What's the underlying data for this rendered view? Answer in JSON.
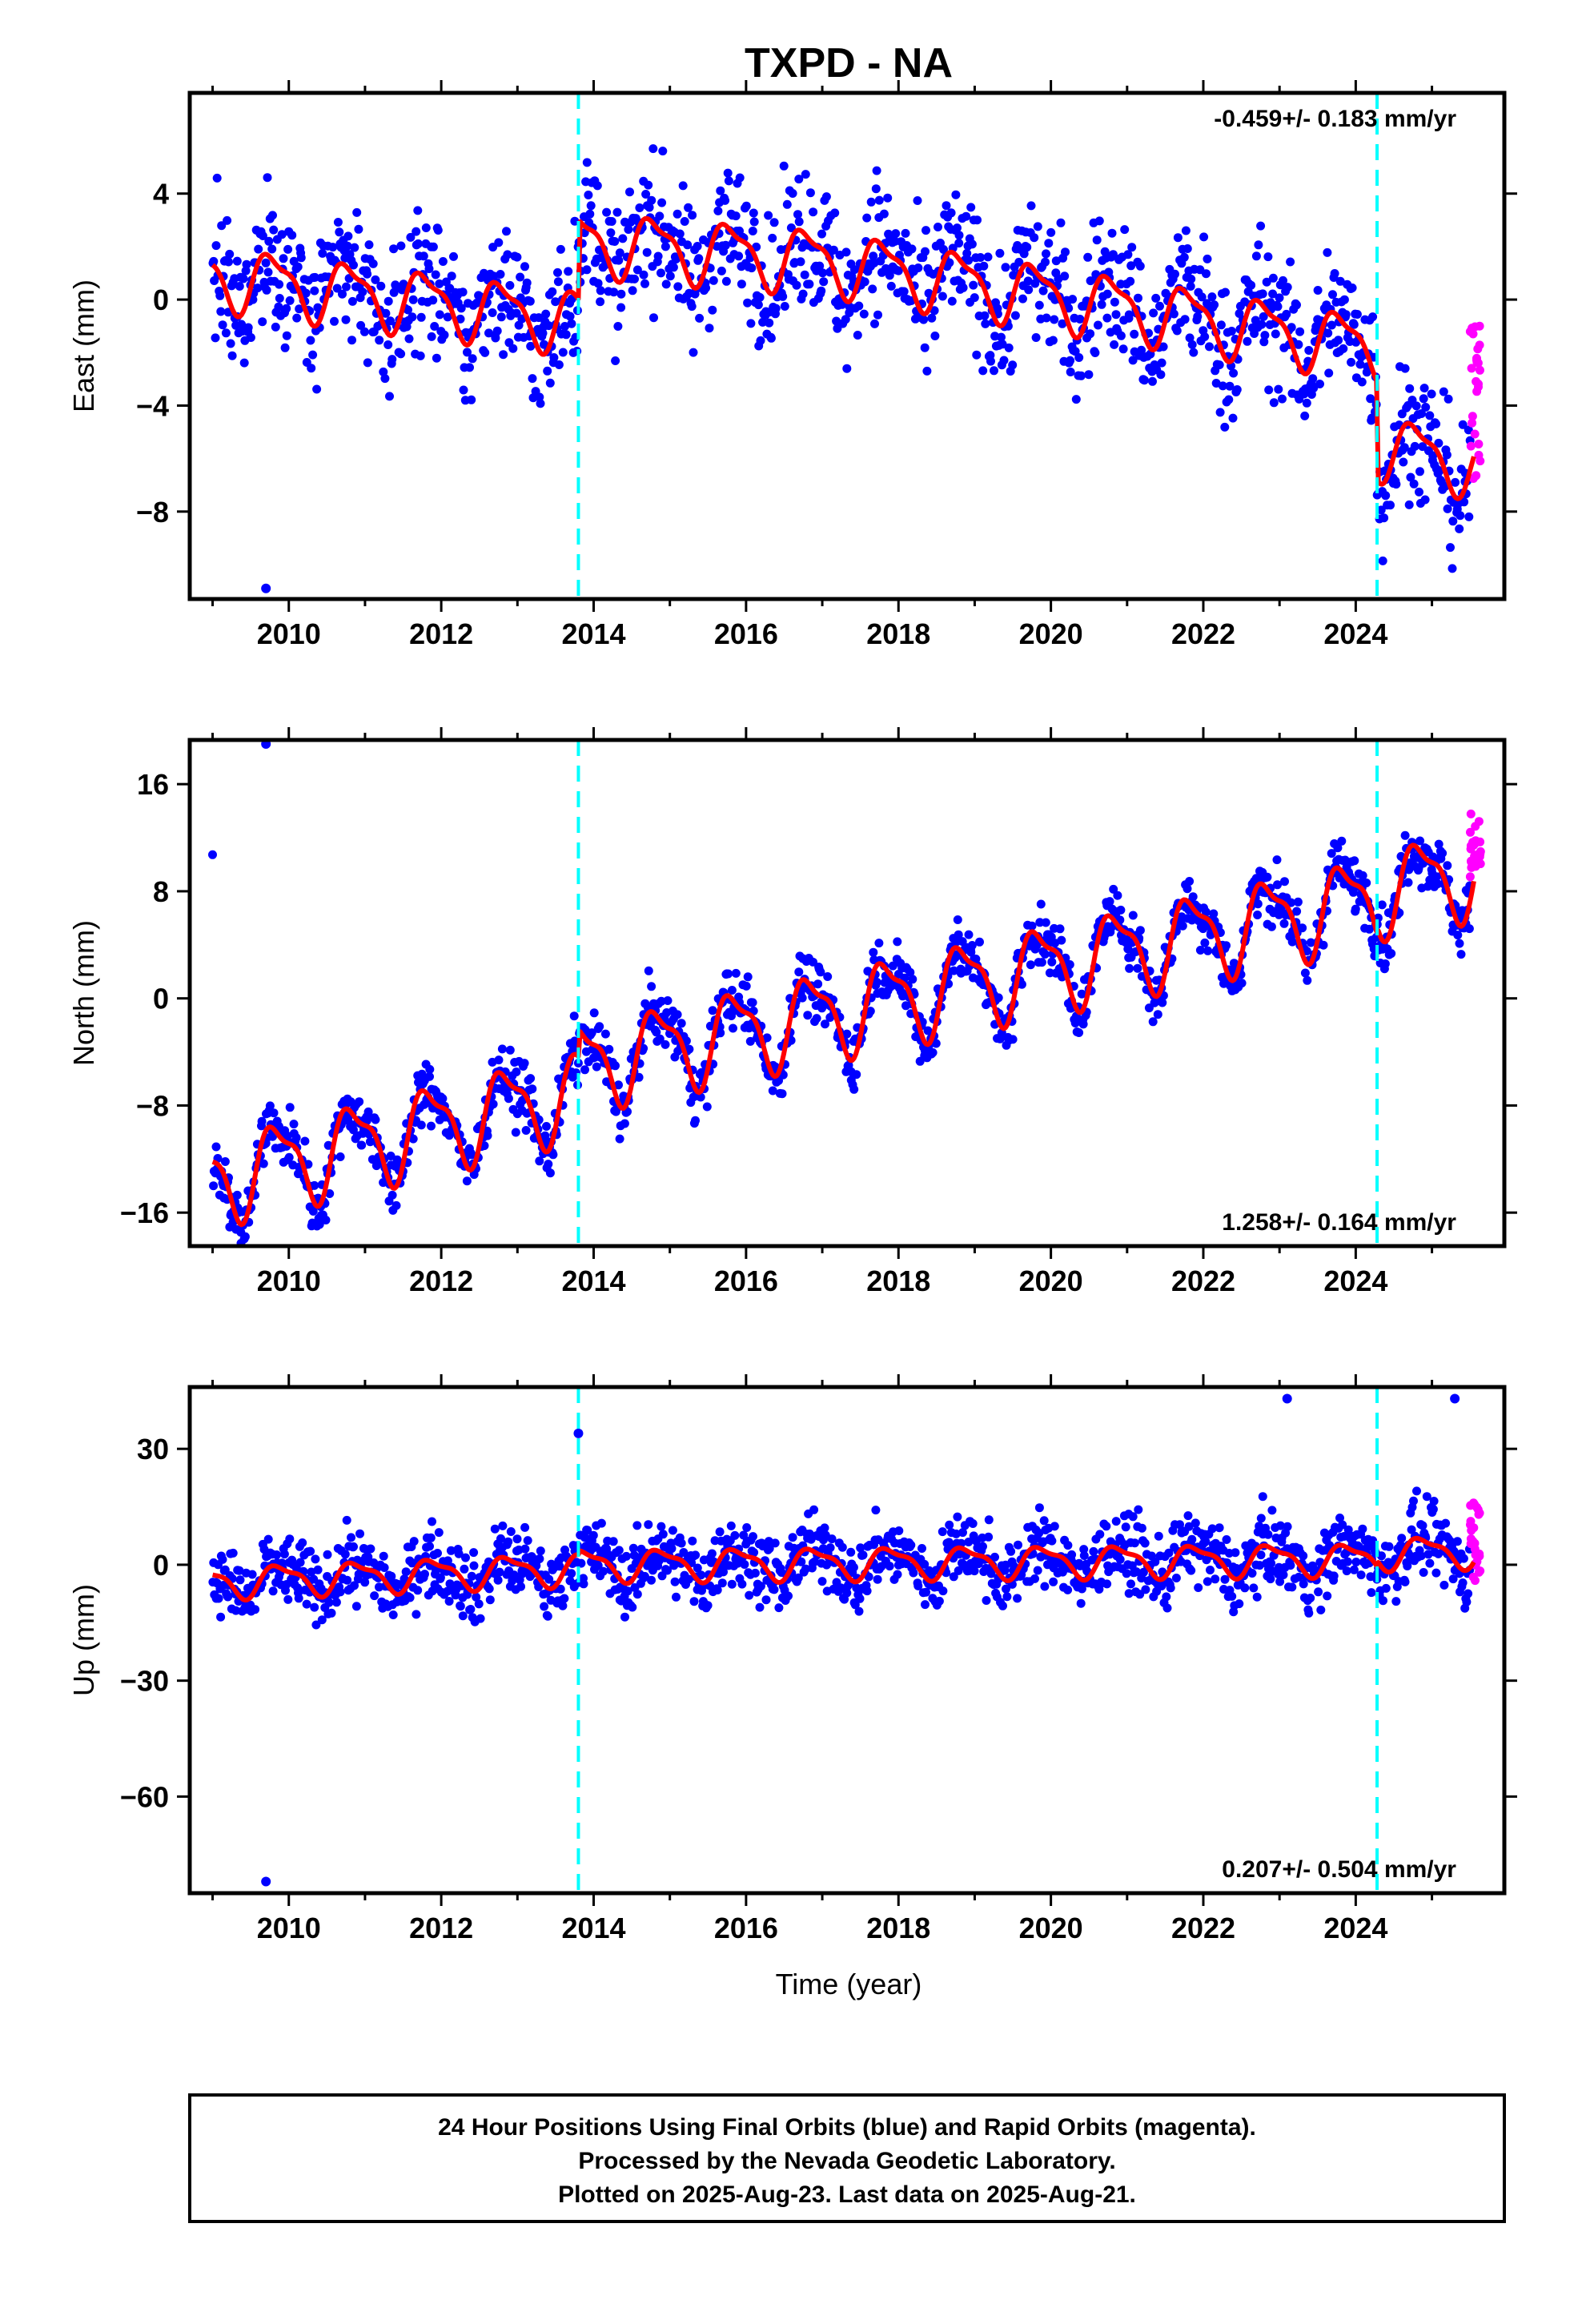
{
  "title": "TXPD - NA",
  "xlabel": "Time (year)",
  "x_ticks": [
    "2010",
    "2012",
    "2014",
    "2016",
    "2018",
    "2020",
    "2022",
    "2024"
  ],
  "footer": {
    "line1": "24 Hour Positions Using Final Orbits (blue) and Rapid Orbits (magenta).",
    "line2": "Processed by the Nevada Geodetic Laboratory.",
    "line3": "Plotted on 2025-Aug-23. Last data on 2025-Aug-21."
  },
  "colors": {
    "final_orbits": "#0000ff",
    "rapid_orbits": "#ff00ff",
    "model": "#ff0000",
    "events": "#00ffff",
    "frame": "#000000"
  },
  "chart_data": [
    {
      "type": "scatter",
      "ylabel": "East (mm)",
      "rate_text": "-0.459+/- 0.183 mm/yr",
      "rate_position": "top-right",
      "xlim": [
        2008.7,
        2025.95
      ],
      "ylim": [
        -11.3,
        7.8
      ],
      "y_ticks": [
        4,
        0,
        -4,
        -8
      ],
      "y_tick_labels": [
        "4",
        "0",
        "−4",
        "−8"
      ],
      "event_lines_x": [
        2013.8,
        2024.28
      ],
      "model": {
        "start": 2009.0,
        "end": 2025.55,
        "amplitude": 1.1,
        "phase": 0.55,
        "segments": [
          {
            "x": [
              2009.0,
              2013.8
            ],
            "y": [
              0.9,
              -0.8
            ]
          },
          {
            "x": [
              2013.8,
              2017.0
            ],
            "y": [
              2.2,
              1.5
            ]
          },
          {
            "x": [
              2017.0,
              2024.28
            ],
            "y": [
              1.5,
              -1.8
            ]
          },
          {
            "x": [
              2024.28,
              2025.55
            ],
            "y": [
              -5.5,
              -6.2
            ]
          }
        ]
      },
      "scatter_noise_mm": 1.3,
      "data_span": [
        2009.0,
        2025.5
      ],
      "rapid_span": [
        2025.5,
        2025.64
      ],
      "rapid_y": [
        -7,
        -0.8
      ],
      "outliers": [
        {
          "x": 2009.7,
          "y": -10.9
        }
      ]
    },
    {
      "type": "scatter",
      "ylabel": "North (mm)",
      "rate_text": "1.258+/- 0.164 mm/yr",
      "rate_position": "bottom-right",
      "xlim": [
        2008.7,
        2025.95
      ],
      "ylim": [
        -18.5,
        19.3
      ],
      "y_ticks": [
        16,
        8,
        0,
        -8,
        -16
      ],
      "y_tick_labels": [
        "16",
        "8",
        "0",
        "−8",
        "−16"
      ],
      "event_lines_x": [
        2013.8,
        2024.28
      ],
      "model": {
        "start": 2009.0,
        "end": 2025.55,
        "amplitude": 3.0,
        "phase": 0.6,
        "segments": [
          {
            "x": [
              2009.0,
              2013.8
            ],
            "y": [
              -13.5,
              -7.0
            ]
          },
          {
            "x": [
              2013.8,
              2024.28
            ],
            "y": [
              -5.0,
              7.5
            ]
          },
          {
            "x": [
              2024.28,
              2025.55
            ],
            "y": [
              8.0,
              9.5
            ]
          }
        ]
      },
      "scatter_noise_mm": 1.1,
      "data_span": [
        2009.0,
        2025.5
      ],
      "rapid_span": [
        2025.5,
        2025.64
      ],
      "rapid_y": [
        9,
        14
      ],
      "outliers": [
        {
          "x": 2009.7,
          "y": 19.0
        }
      ]
    },
    {
      "type": "scatter",
      "ylabel": "Up (mm)",
      "rate_text": "0.207+/- 0.504 mm/yr",
      "rate_position": "bottom-right",
      "xlim": [
        2008.7,
        2025.95
      ],
      "ylim": [
        -85,
        46
      ],
      "y_ticks": [
        30,
        0,
        -30,
        -60
      ],
      "y_tick_labels": [
        "30",
        "0",
        "−30",
        "−60"
      ],
      "event_lines_x": [
        2013.8,
        2024.28
      ],
      "model": {
        "start": 2009.0,
        "end": 2025.55,
        "amplitude": 3.8,
        "phase": 0.65,
        "segments": [
          {
            "x": [
              2009.0,
              2013.8
            ],
            "y": [
              -4.5,
              -1.0
            ]
          },
          {
            "x": [
              2013.8,
              2024.28
            ],
            "y": [
              0.0,
              1.5
            ]
          },
          {
            "x": [
              2024.28,
              2025.55
            ],
            "y": [
              3.0,
              3.5
            ]
          }
        ]
      },
      "scatter_noise_mm": 4.5,
      "data_span": [
        2009.0,
        2025.5
      ],
      "rapid_span": [
        2025.5,
        2025.64
      ],
      "rapid_y": [
        -5,
        16
      ],
      "outliers": [
        {
          "x": 2009.7,
          "y": -82
        },
        {
          "x": 2013.8,
          "y": 34
        },
        {
          "x": 2023.1,
          "y": 43
        },
        {
          "x": 2025.3,
          "y": 43
        }
      ]
    }
  ]
}
